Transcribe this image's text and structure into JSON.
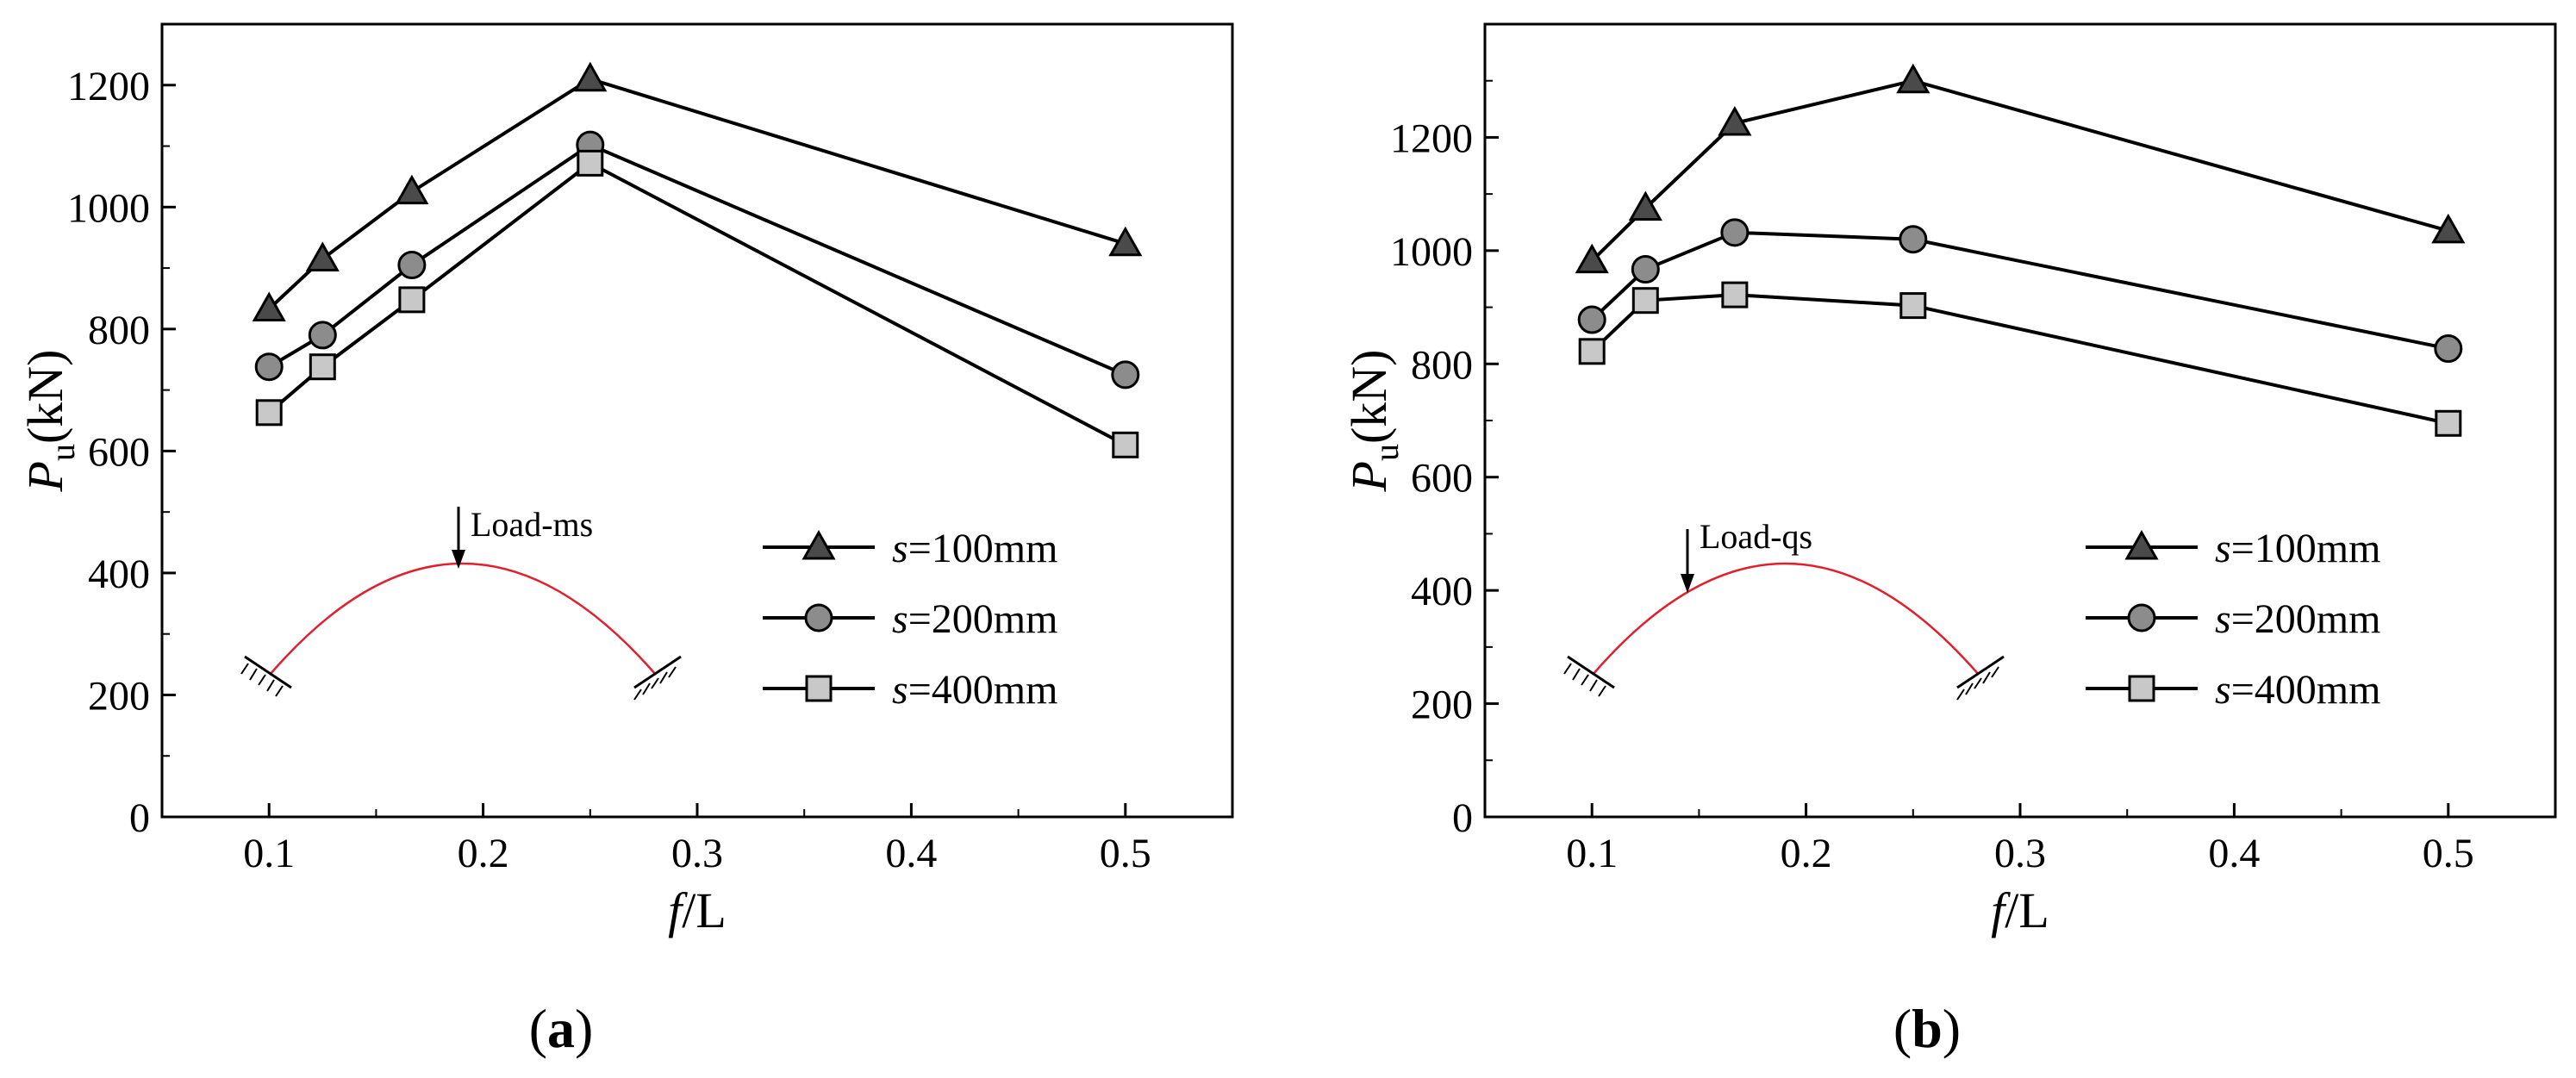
{
  "colors": {
    "series": [
      "#4a4a4a",
      "#8c8c8c",
      "#c8c8c8"
    ],
    "arch": "#e0202e",
    "line": "#000000"
  },
  "chart_data": [
    {
      "type": "line",
      "panel": "(a)",
      "xlabel": "f/L",
      "ylabel": "Pu(kN)",
      "ylabel_symbol": "P",
      "ylabel_subscript": "u",
      "ylabel_unit": "(kN)",
      "xlabel_f": "f",
      "xlabel_rest": "/L",
      "xlim": [
        0.05,
        0.55
      ],
      "ylim": [
        0,
        1300
      ],
      "xticks": [
        "0.1",
        "0.2",
        "0.3",
        "0.4",
        "0.5"
      ],
      "yticks": [
        "0",
        "200",
        "400",
        "600",
        "800",
        "1000",
        "1200"
      ],
      "x": [
        0.1,
        0.125,
        0.1667,
        0.25,
        0.5
      ],
      "series": [
        {
          "name": "s=100mm",
          "name_s": "s",
          "name_rest": "=100mm",
          "marker": "triangle",
          "values": [
            833,
            915,
            1025,
            1210,
            940
          ]
        },
        {
          "name": "s=200mm",
          "name_s": "s",
          "name_rest": "=200mm",
          "marker": "circle",
          "values": [
            738,
            790,
            905,
            1102,
            725
          ]
        },
        {
          "name": "s=400mm",
          "name_s": "s",
          "name_rest": "=400mm",
          "marker": "square",
          "values": [
            663,
            738,
            848,
            1072,
            610
          ]
        }
      ],
      "inset": {
        "load_label": "Load-ms",
        "load_position": "mid-span"
      }
    },
    {
      "type": "line",
      "panel": "(b)",
      "xlabel": "f/L",
      "ylabel": "Pu(kN)",
      "ylabel_symbol": "P",
      "ylabel_subscript": "u",
      "ylabel_unit": "(kN)",
      "xlabel_f": "f",
      "xlabel_rest": "/L",
      "xlim": [
        0.05,
        0.55
      ],
      "ylim": [
        0,
        1400
      ],
      "xticks": [
        "0.1",
        "0.2",
        "0.3",
        "0.4",
        "0.5"
      ],
      "yticks": [
        "0",
        "200",
        "400",
        "600",
        "800",
        "1000",
        "1200"
      ],
      "x": [
        0.1,
        0.125,
        0.1667,
        0.25,
        0.5
      ],
      "series": [
        {
          "name": "s=100mm",
          "name_s": "s",
          "name_rest": "=100mm",
          "marker": "triangle",
          "values": [
            982,
            1075,
            1225,
            1300,
            1035
          ]
        },
        {
          "name": "s=200mm",
          "name_s": "s",
          "name_rest": "=200mm",
          "marker": "circle",
          "values": [
            878,
            967,
            1032,
            1020,
            827
          ]
        },
        {
          "name": "s=400mm",
          "name_s": "s",
          "name_rest": "=400mm",
          "marker": "square",
          "values": [
            822,
            912,
            922,
            903,
            695
          ]
        }
      ],
      "inset": {
        "load_label": "Load-qs",
        "load_position": "quarter-span"
      }
    }
  ],
  "captions": {
    "a_letter": "a",
    "b_letter": "b",
    "open": "(",
    "close": ")"
  }
}
